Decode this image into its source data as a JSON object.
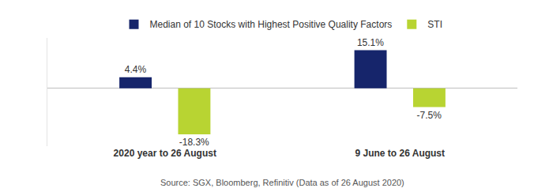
{
  "chart_data": {
    "type": "bar",
    "categories": [
      "2020 year to 26 August",
      "9 June to 26 August"
    ],
    "series": [
      {
        "name": "Median of 10 Stocks with Highest Positive Quality Factors",
        "color": "#16256b",
        "values": [
          4.4,
          15.1
        ],
        "value_labels": [
          "4.4%",
          "15.1%"
        ]
      },
      {
        "name": "STI",
        "color": "#b8d432",
        "values": [
          -18.3,
          -7.5
        ],
        "value_labels": [
          "-18.3%",
          "-7.5%"
        ]
      }
    ],
    "data_labels": true,
    "ylim": [
      -23,
      20
    ],
    "yticks": [
      0
    ],
    "tick_labels": "x",
    "legend": "top",
    "annotations": [
      "Source: SGX, Bloomberg, Refinitiv (Data as of 26 August 2020)"
    ]
  }
}
